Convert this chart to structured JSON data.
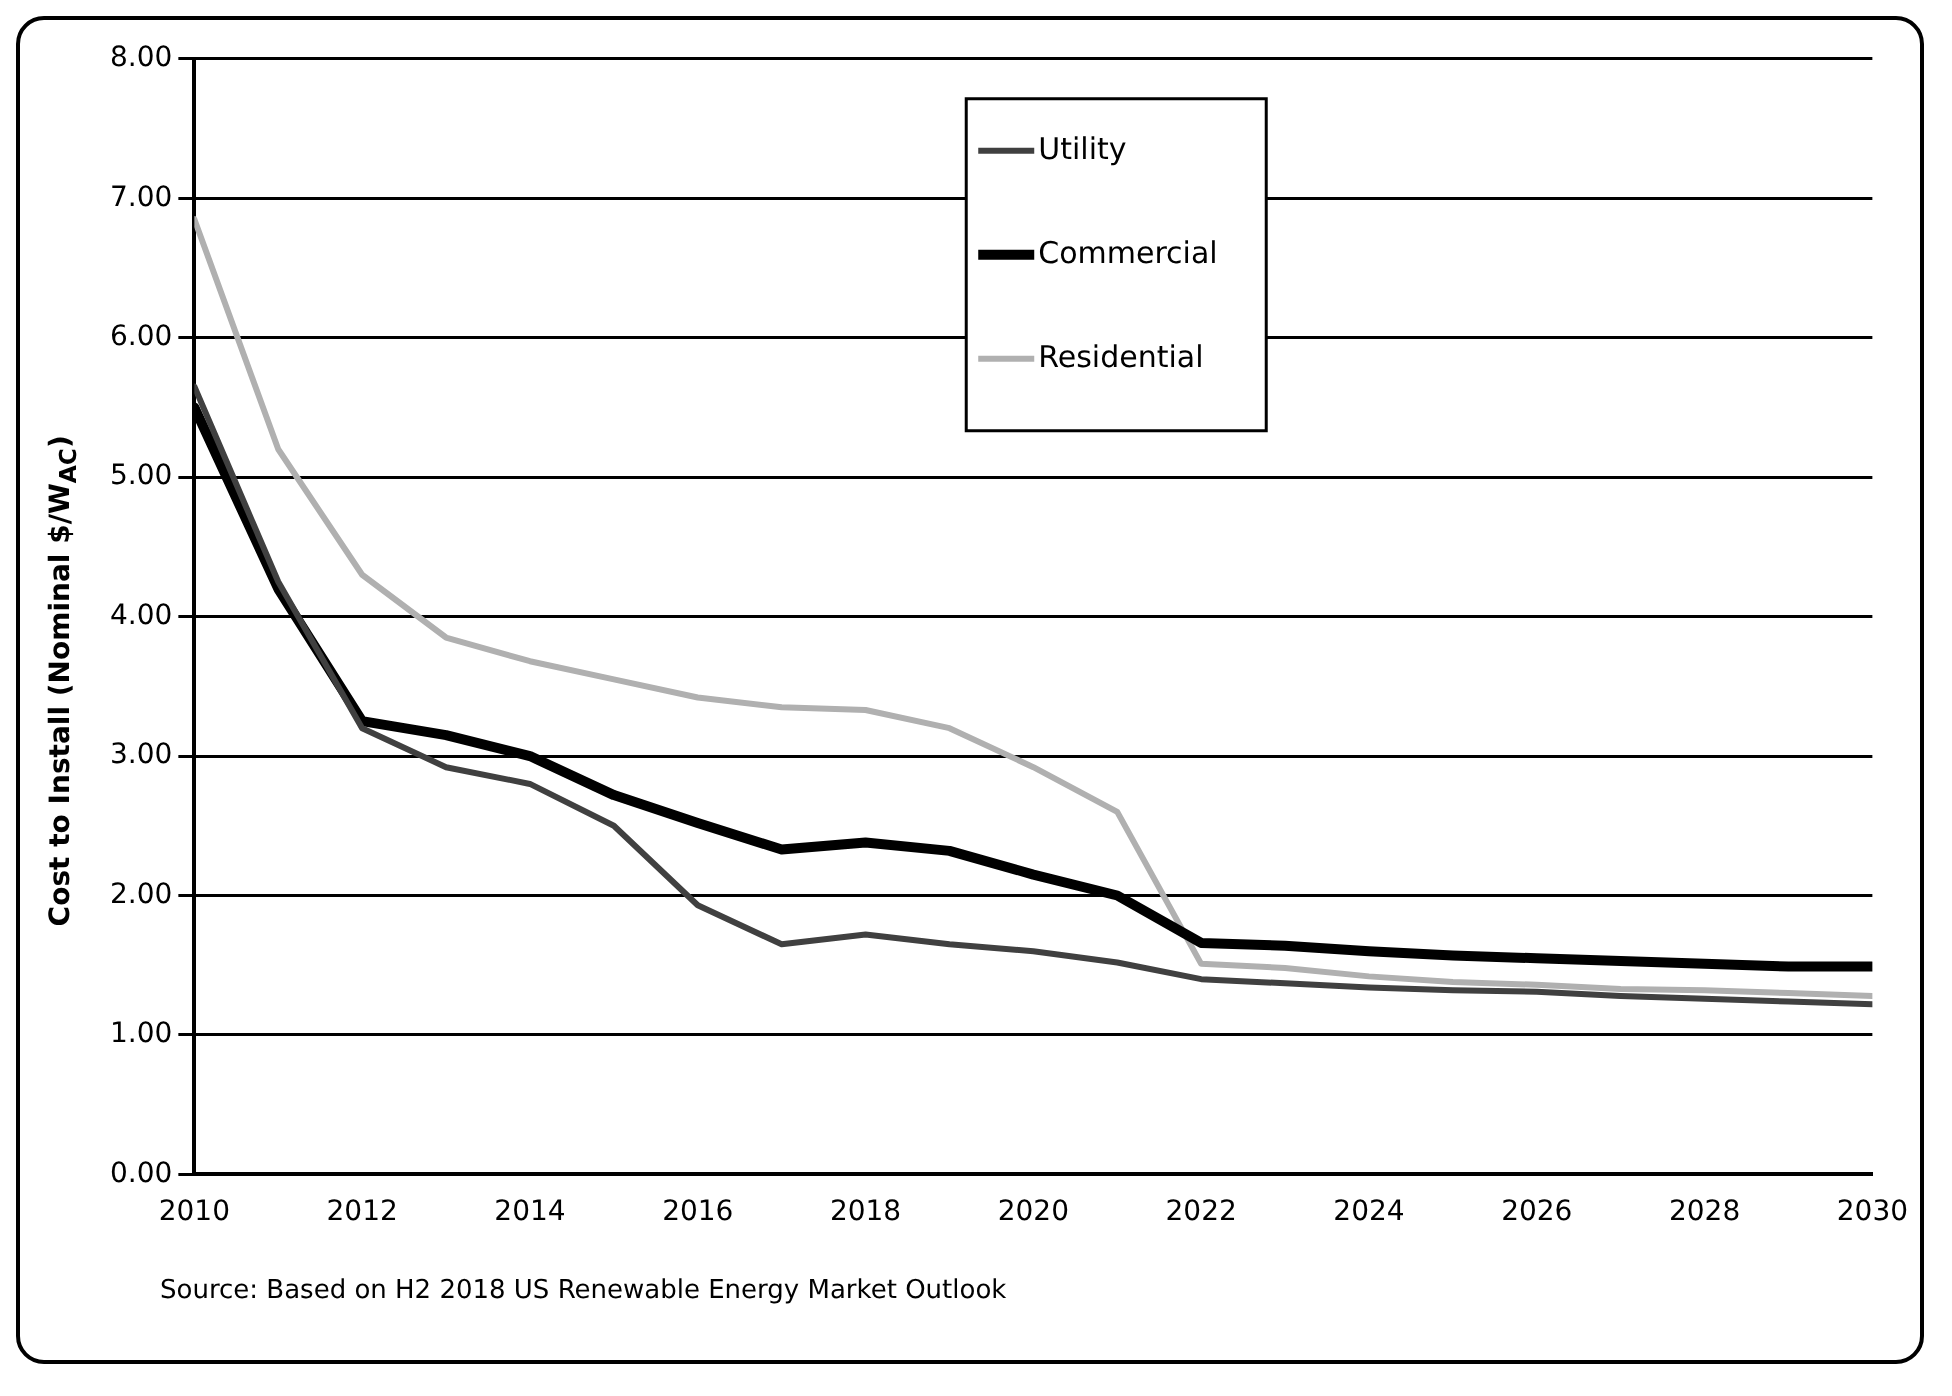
{
  "chart_data": {
    "type": "line",
    "ylabel": "Cost to Install (Nominal $/W$_{AC}$)",
    "x": [
      2010,
      2011,
      2012,
      2013,
      2014,
      2015,
      2016,
      2017,
      2018,
      2019,
      2020,
      2021,
      2022,
      2023,
      2024,
      2025,
      2026,
      2027,
      2028,
      2029,
      2030
    ],
    "series": [
      {
        "name": "Utility",
        "color": "#404040",
        "values": [
          5.65,
          4.25,
          3.2,
          2.92,
          2.8,
          2.5,
          1.93,
          1.65,
          1.72,
          1.65,
          1.6,
          1.52,
          1.4,
          1.37,
          1.34,
          1.32,
          1.31,
          1.28,
          1.26,
          1.24,
          1.22
        ]
      },
      {
        "name": "Commercial",
        "color": "#000000",
        "values": [
          5.5,
          4.2,
          3.25,
          3.15,
          3.0,
          2.72,
          2.52,
          2.33,
          2.38,
          2.32,
          2.15,
          2.0,
          1.66,
          1.64,
          1.6,
          1.57,
          1.55,
          1.53,
          1.51,
          1.49,
          1.49
        ]
      },
      {
        "name": "Residential",
        "color": "#b0b0b0",
        "values": [
          6.85,
          5.2,
          4.3,
          3.85,
          3.68,
          3.55,
          3.42,
          3.35,
          3.33,
          3.2,
          2.92,
          2.6,
          1.51,
          1.48,
          1.42,
          1.38,
          1.36,
          1.33,
          1.32,
          1.3,
          1.28
        ]
      }
    ],
    "xlim": [
      2010,
      2030
    ],
    "xticks": [
      2010,
      2012,
      2014,
      2016,
      2018,
      2020,
      2022,
      2024,
      2026,
      2028,
      2030
    ],
    "ylim": [
      0,
      8
    ],
    "yticks": [
      {
        "value": 0,
        "label": "0.00"
      },
      {
        "value": 1,
        "label": "1.00"
      },
      {
        "value": 2,
        "label": "2.00"
      },
      {
        "value": 3,
        "label": "3.00"
      },
      {
        "value": 4,
        "label": "4.00"
      },
      {
        "value": 5,
        "label": "5.00"
      },
      {
        "value": 6,
        "label": "6.00"
      },
      {
        "value": 7,
        "label": "7.00"
      },
      {
        "value": 8,
        "label": "8.00"
      }
    ],
    "grid": "y",
    "legend": "top",
    "marker": "none",
    "line_style": "solid",
    "annotations": [
      "Source: Based on H2 2018 US Renewable Energy Market Outlook"
    ]
  }
}
